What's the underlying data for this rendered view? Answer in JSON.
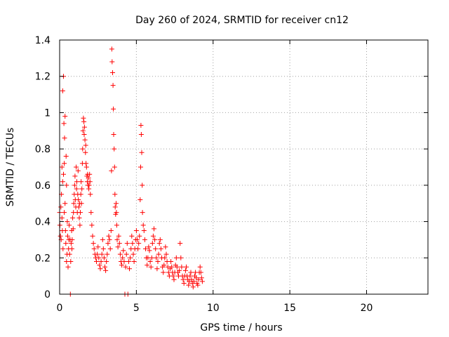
{
  "chart_data": {
    "type": "scatter",
    "title": "Day 260 of 2024, SRMTID for receiver cn12",
    "xlabel": "GPS time / hours",
    "ylabel": "SRMTID / TECUs",
    "xlim": [
      0,
      24
    ],
    "ylim": [
      0,
      1.4
    ],
    "xticks": [
      0,
      5,
      10,
      15,
      20
    ],
    "xtick_labels": [
      "0",
      "5",
      "10",
      "15",
      "20"
    ],
    "yticks": [
      0,
      0.2,
      0.4,
      0.6,
      0.8,
      1.0,
      1.2,
      1.4
    ],
    "ytick_labels": [
      "0",
      "0.2",
      "0.4",
      "0.6",
      "0.8",
      "1",
      "1.2",
      "1.4"
    ],
    "grid": true,
    "marker": "+",
    "color": "#ff0000",
    "series": [
      {
        "name": "SRMTID",
        "points": [
          [
            0.0,
            0.45
          ],
          [
            0.02,
            0.38
          ],
          [
            0.05,
            0.32
          ],
          [
            0.08,
            0.48
          ],
          [
            0.1,
            0.3
          ],
          [
            0.12,
            0.55
          ],
          [
            0.15,
            0.7
          ],
          [
            0.15,
            0.42
          ],
          [
            0.18,
            0.35
          ],
          [
            0.2,
            0.62
          ],
          [
            0.2,
            1.12
          ],
          [
            0.22,
            0.25
          ],
          [
            0.25,
            1.2
          ],
          [
            0.25,
            0.66
          ],
          [
            0.28,
            0.94
          ],
          [
            0.3,
            0.72
          ],
          [
            0.3,
            0.45
          ],
          [
            0.32,
            0.86
          ],
          [
            0.35,
            0.98
          ],
          [
            0.35,
            0.5
          ],
          [
            0.38,
            0.35
          ],
          [
            0.4,
            0.28
          ],
          [
            0.42,
            0.76
          ],
          [
            0.45,
            0.6
          ],
          [
            0.45,
            0.18
          ],
          [
            0.48,
            0.22
          ],
          [
            0.5,
            0.4
          ],
          [
            0.52,
            0.32
          ],
          [
            0.55,
            0.15
          ],
          [
            0.58,
            0.25
          ],
          [
            0.6,
            0.3
          ],
          [
            0.62,
            0.38
          ],
          [
            0.65,
            0.22
          ],
          [
            0.68,
            0.3
          ],
          [
            0.7,
            0.0
          ],
          [
            0.72,
            0.18
          ],
          [
            0.75,
            0.28
          ],
          [
            0.78,
            0.35
          ],
          [
            0.8,
            0.25
          ],
          [
            0.82,
            0.3
          ],
          [
            0.85,
            0.42
          ],
          [
            0.88,
            0.36
          ],
          [
            0.9,
            0.45
          ],
          [
            0.92,
            0.5
          ],
          [
            0.95,
            0.55
          ],
          [
            0.98,
            0.6
          ],
          [
            1.0,
            0.65
          ],
          [
            1.02,
            0.52
          ],
          [
            1.05,
            0.48
          ],
          [
            1.08,
            0.7
          ],
          [
            1.1,
            0.58
          ],
          [
            1.12,
            0.62
          ],
          [
            1.15,
            0.45
          ],
          [
            1.18,
            0.55
          ],
          [
            1.2,
            0.68
          ],
          [
            1.22,
            0.52
          ],
          [
            1.25,
            0.48
          ],
          [
            1.28,
            0.42
          ],
          [
            1.3,
            0.5
          ],
          [
            1.32,
            0.38
          ],
          [
            1.35,
            0.45
          ],
          [
            1.38,
            0.55
          ],
          [
            1.4,
            0.62
          ],
          [
            1.42,
            0.5
          ],
          [
            1.45,
            0.58
          ],
          [
            1.48,
            0.72
          ],
          [
            1.5,
            0.8
          ],
          [
            1.52,
            0.9
          ],
          [
            1.55,
            0.97
          ],
          [
            1.58,
            0.95
          ],
          [
            1.6,
            0.88
          ],
          [
            1.62,
            0.92
          ],
          [
            1.65,
            0.85
          ],
          [
            1.68,
            0.78
          ],
          [
            1.7,
            0.82
          ],
          [
            1.72,
            0.72
          ],
          [
            1.75,
            0.7
          ],
          [
            1.78,
            0.65
          ],
          [
            1.8,
            0.62
          ],
          [
            1.82,
            0.66
          ],
          [
            1.85,
            0.6
          ],
          [
            1.88,
            0.64
          ],
          [
            1.9,
            0.58
          ],
          [
            1.92,
            0.6
          ],
          [
            1.95,
            0.66
          ],
          [
            1.98,
            0.62
          ],
          [
            2.0,
            0.55
          ],
          [
            2.05,
            0.45
          ],
          [
            2.1,
            0.38
          ],
          [
            2.15,
            0.32
          ],
          [
            2.2,
            0.28
          ],
          [
            2.25,
            0.25
          ],
          [
            2.3,
            0.22
          ],
          [
            2.35,
            0.2
          ],
          [
            2.4,
            0.18
          ],
          [
            2.45,
            0.22
          ],
          [
            2.5,
            0.26
          ],
          [
            2.55,
            0.2
          ],
          [
            2.6,
            0.16
          ],
          [
            2.65,
            0.14
          ],
          [
            2.7,
            0.18
          ],
          [
            2.75,
            0.22
          ],
          [
            2.8,
            0.3
          ],
          [
            2.85,
            0.25
          ],
          [
            2.9,
            0.2
          ],
          [
            2.95,
            0.15
          ],
          [
            3.0,
            0.13
          ],
          [
            3.05,
            0.18
          ],
          [
            3.1,
            0.22
          ],
          [
            3.15,
            0.28
          ],
          [
            3.2,
            0.32
          ],
          [
            3.25,
            0.3
          ],
          [
            3.3,
            0.25
          ],
          [
            3.35,
            0.35
          ],
          [
            3.38,
            0.68
          ],
          [
            3.4,
            1.35
          ],
          [
            3.42,
            1.28
          ],
          [
            3.45,
            1.22
          ],
          [
            3.48,
            1.15
          ],
          [
            3.5,
            1.02
          ],
          [
            3.52,
            0.88
          ],
          [
            3.55,
            0.8
          ],
          [
            3.58,
            0.7
          ],
          [
            3.6,
            0.55
          ],
          [
            3.62,
            0.48
          ],
          [
            3.65,
            0.44
          ],
          [
            3.68,
            0.5
          ],
          [
            3.7,
            0.45
          ],
          [
            3.72,
            0.38
          ],
          [
            3.75,
            0.3
          ],
          [
            3.8,
            0.26
          ],
          [
            3.85,
            0.32
          ],
          [
            3.9,
            0.28
          ],
          [
            3.95,
            0.22
          ],
          [
            4.0,
            0.18
          ],
          [
            4.05,
            0.16
          ],
          [
            4.1,
            0.2
          ],
          [
            4.15,
            0.24
          ],
          [
            4.2,
            0.18
          ],
          [
            4.25,
            0.0
          ],
          [
            4.3,
            0.15
          ],
          [
            4.35,
            0.22
          ],
          [
            4.4,
            0.28
          ],
          [
            4.45,
            0.0
          ],
          [
            4.5,
            0.18
          ],
          [
            4.55,
            0.14
          ],
          [
            4.6,
            0.2
          ],
          [
            4.65,
            0.25
          ],
          [
            4.7,
            0.32
          ],
          [
            4.75,
            0.28
          ],
          [
            4.8,
            0.22
          ],
          [
            4.85,
            0.18
          ],
          [
            4.9,
            0.25
          ],
          [
            4.95,
            0.3
          ],
          [
            5.0,
            0.35
          ],
          [
            5.05,
            0.3
          ],
          [
            5.1,
            0.25
          ],
          [
            5.15,
            0.28
          ],
          [
            5.2,
            0.32
          ],
          [
            5.25,
            0.52
          ],
          [
            5.28,
            0.7
          ],
          [
            5.3,
            0.93
          ],
          [
            5.32,
            0.88
          ],
          [
            5.35,
            0.78
          ],
          [
            5.38,
            0.6
          ],
          [
            5.4,
            0.45
          ],
          [
            5.45,
            0.38
          ],
          [
            5.5,
            0.35
          ],
          [
            5.55,
            0.3
          ],
          [
            5.6,
            0.25
          ],
          [
            5.65,
            0.2
          ],
          [
            5.7,
            0.16
          ],
          [
            5.75,
            0.2
          ],
          [
            5.8,
            0.26
          ],
          [
            5.85,
            0.24
          ],
          [
            5.9,
            0.18
          ],
          [
            5.95,
            0.15
          ],
          [
            6.0,
            0.2
          ],
          [
            6.05,
            0.28
          ],
          [
            6.1,
            0.32
          ],
          [
            6.15,
            0.36
          ],
          [
            6.2,
            0.3
          ],
          [
            6.25,
            0.25
          ],
          [
            6.3,
            0.2
          ],
          [
            6.35,
            0.14
          ],
          [
            6.4,
            0.18
          ],
          [
            6.45,
            0.22
          ],
          [
            6.5,
            0.28
          ],
          [
            6.55,
            0.3
          ],
          [
            6.6,
            0.25
          ],
          [
            6.65,
            0.2
          ],
          [
            6.7,
            0.15
          ],
          [
            6.75,
            0.12
          ],
          [
            6.8,
            0.16
          ],
          [
            6.85,
            0.2
          ],
          [
            6.9,
            0.26
          ],
          [
            6.95,
            0.22
          ],
          [
            7.0,
            0.18
          ],
          [
            7.05,
            0.15
          ],
          [
            7.1,
            0.12
          ],
          [
            7.15,
            0.1
          ],
          [
            7.2,
            0.14
          ],
          [
            7.25,
            0.18
          ],
          [
            7.3,
            0.15
          ],
          [
            7.35,
            0.12
          ],
          [
            7.4,
            0.1
          ],
          [
            7.45,
            0.08
          ],
          [
            7.5,
            0.12
          ],
          [
            7.55,
            0.16
          ],
          [
            7.6,
            0.2
          ],
          [
            7.65,
            0.15
          ],
          [
            7.7,
            0.12
          ],
          [
            7.75,
            0.1
          ],
          [
            7.8,
            0.13
          ],
          [
            7.85,
            0.28
          ],
          [
            7.9,
            0.2
          ],
          [
            7.95,
            0.15
          ],
          [
            8.0,
            0.1
          ],
          [
            8.05,
            0.08
          ],
          [
            8.1,
            0.06
          ],
          [
            8.15,
            0.1
          ],
          [
            8.2,
            0.13
          ],
          [
            8.25,
            0.15
          ],
          [
            8.3,
            0.1
          ],
          [
            8.35,
            0.08
          ],
          [
            8.4,
            0.05
          ],
          [
            8.45,
            0.07
          ],
          [
            8.5,
            0.1
          ],
          [
            8.55,
            0.12
          ],
          [
            8.6,
            0.08
          ],
          [
            8.65,
            0.06
          ],
          [
            8.7,
            0.04
          ],
          [
            8.75,
            0.07
          ],
          [
            8.8,
            0.1
          ],
          [
            8.85,
            0.12
          ],
          [
            8.9,
            0.09
          ],
          [
            8.95,
            0.06
          ],
          [
            9.0,
            0.05
          ],
          [
            9.05,
            0.08
          ],
          [
            9.1,
            0.12
          ],
          [
            9.15,
            0.15
          ],
          [
            9.2,
            0.12
          ],
          [
            9.25,
            0.09
          ],
          [
            9.3,
            0.07
          ]
        ]
      }
    ]
  }
}
